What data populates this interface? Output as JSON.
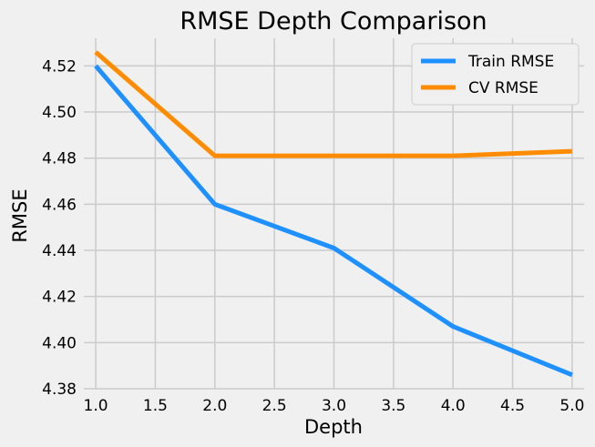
{
  "chart_data": {
    "type": "line",
    "title": "RMSE Depth Comparison",
    "xlabel": "Depth",
    "ylabel": "RMSE",
    "x": [
      1.0,
      2.0,
      3.0,
      4.0,
      5.0
    ],
    "xlim": [
      0.9,
      5.1
    ],
    "ylim": [
      4.38,
      4.532
    ],
    "xticks": [
      "1.0",
      "1.5",
      "2.0",
      "2.5",
      "3.0",
      "3.5",
      "4.0",
      "4.5",
      "5.0"
    ],
    "yticks": [
      "4.38",
      "4.40",
      "4.42",
      "4.44",
      "4.46",
      "4.48",
      "4.50",
      "4.52"
    ],
    "grid": true,
    "legend_position": "top-right",
    "series": [
      {
        "name": "Train RMSE",
        "color": "#1e90ff",
        "values": [
          4.52,
          4.46,
          4.441,
          4.407,
          4.386
        ]
      },
      {
        "name": "CV RMSE",
        "color": "#ff8c00",
        "values": [
          4.526,
          4.481,
          4.481,
          4.481,
          4.483
        ]
      }
    ]
  }
}
